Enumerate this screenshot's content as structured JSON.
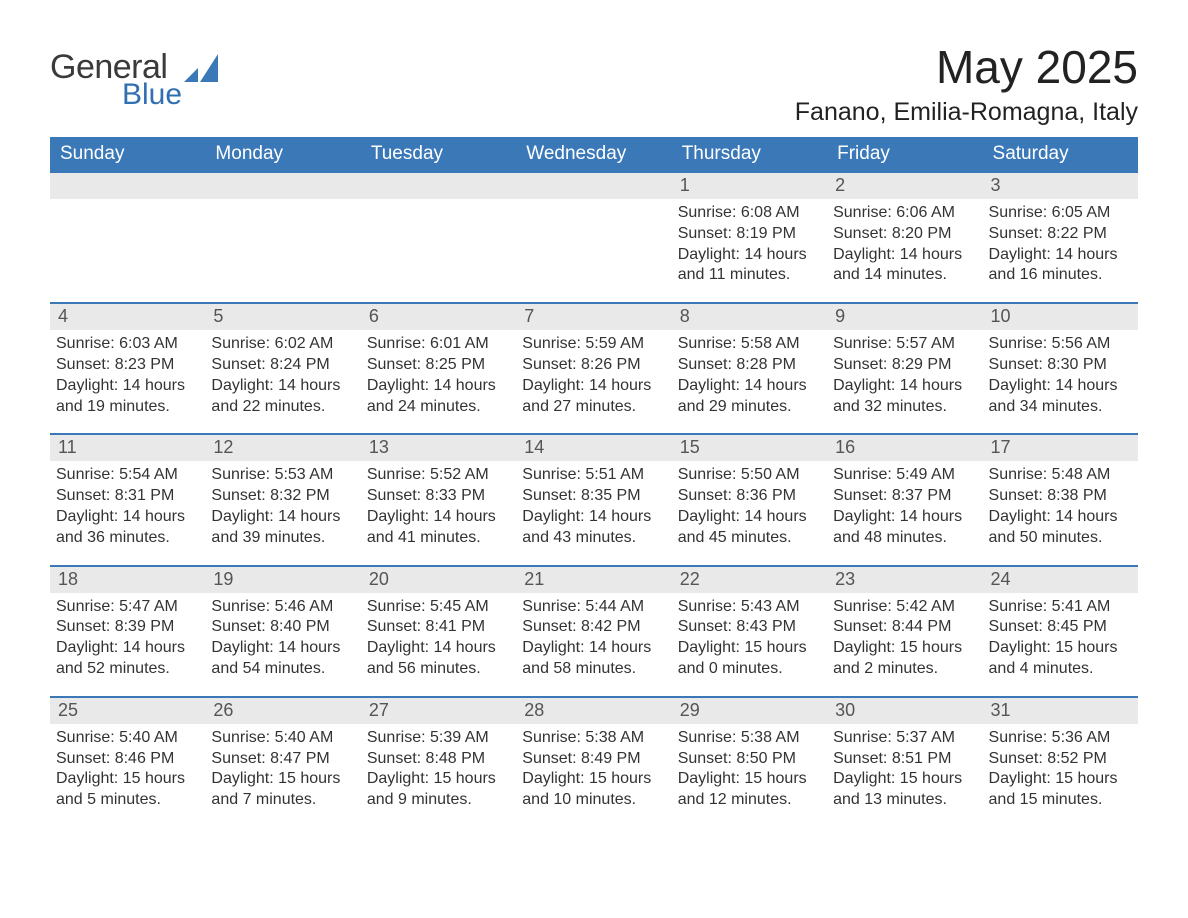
{
  "logo": {
    "word1": "General",
    "word2": "Blue",
    "icon_color": "#3b78b8",
    "word1_color": "#3a3a3a",
    "word2_color": "#2f6fb2"
  },
  "title": "May 2025",
  "location": "Fanano, Emilia-Romagna, Italy",
  "colors": {
    "header_bg": "#3b78b8",
    "header_text": "#ffffff",
    "daynum_bg": "#e9e9e9",
    "daynum_text": "#555555",
    "body_text": "#333333",
    "rule": "#3b78b8",
    "page_bg": "#ffffff"
  },
  "typography": {
    "title_fontsize": 46,
    "location_fontsize": 25,
    "header_fontsize": 19,
    "daynum_fontsize": 18,
    "body_fontsize": 16,
    "font_family": "Arial"
  },
  "weekdays": [
    "Sunday",
    "Monday",
    "Tuesday",
    "Wednesday",
    "Thursday",
    "Friday",
    "Saturday"
  ],
  "weeks": [
    [
      {
        "day": "",
        "sunrise": "",
        "sunset": "",
        "daylight": ""
      },
      {
        "day": "",
        "sunrise": "",
        "sunset": "",
        "daylight": ""
      },
      {
        "day": "",
        "sunrise": "",
        "sunset": "",
        "daylight": ""
      },
      {
        "day": "",
        "sunrise": "",
        "sunset": "",
        "daylight": ""
      },
      {
        "day": "1",
        "sunrise": "Sunrise: 6:08 AM",
        "sunset": "Sunset: 8:19 PM",
        "daylight": "Daylight: 14 hours and 11 minutes."
      },
      {
        "day": "2",
        "sunrise": "Sunrise: 6:06 AM",
        "sunset": "Sunset: 8:20 PM",
        "daylight": "Daylight: 14 hours and 14 minutes."
      },
      {
        "day": "3",
        "sunrise": "Sunrise: 6:05 AM",
        "sunset": "Sunset: 8:22 PM",
        "daylight": "Daylight: 14 hours and 16 minutes."
      }
    ],
    [
      {
        "day": "4",
        "sunrise": "Sunrise: 6:03 AM",
        "sunset": "Sunset: 8:23 PM",
        "daylight": "Daylight: 14 hours and 19 minutes."
      },
      {
        "day": "5",
        "sunrise": "Sunrise: 6:02 AM",
        "sunset": "Sunset: 8:24 PM",
        "daylight": "Daylight: 14 hours and 22 minutes."
      },
      {
        "day": "6",
        "sunrise": "Sunrise: 6:01 AM",
        "sunset": "Sunset: 8:25 PM",
        "daylight": "Daylight: 14 hours and 24 minutes."
      },
      {
        "day": "7",
        "sunrise": "Sunrise: 5:59 AM",
        "sunset": "Sunset: 8:26 PM",
        "daylight": "Daylight: 14 hours and 27 minutes."
      },
      {
        "day": "8",
        "sunrise": "Sunrise: 5:58 AM",
        "sunset": "Sunset: 8:28 PM",
        "daylight": "Daylight: 14 hours and 29 minutes."
      },
      {
        "day": "9",
        "sunrise": "Sunrise: 5:57 AM",
        "sunset": "Sunset: 8:29 PM",
        "daylight": "Daylight: 14 hours and 32 minutes."
      },
      {
        "day": "10",
        "sunrise": "Sunrise: 5:56 AM",
        "sunset": "Sunset: 8:30 PM",
        "daylight": "Daylight: 14 hours and 34 minutes."
      }
    ],
    [
      {
        "day": "11",
        "sunrise": "Sunrise: 5:54 AM",
        "sunset": "Sunset: 8:31 PM",
        "daylight": "Daylight: 14 hours and 36 minutes."
      },
      {
        "day": "12",
        "sunrise": "Sunrise: 5:53 AM",
        "sunset": "Sunset: 8:32 PM",
        "daylight": "Daylight: 14 hours and 39 minutes."
      },
      {
        "day": "13",
        "sunrise": "Sunrise: 5:52 AM",
        "sunset": "Sunset: 8:33 PM",
        "daylight": "Daylight: 14 hours and 41 minutes."
      },
      {
        "day": "14",
        "sunrise": "Sunrise: 5:51 AM",
        "sunset": "Sunset: 8:35 PM",
        "daylight": "Daylight: 14 hours and 43 minutes."
      },
      {
        "day": "15",
        "sunrise": "Sunrise: 5:50 AM",
        "sunset": "Sunset: 8:36 PM",
        "daylight": "Daylight: 14 hours and 45 minutes."
      },
      {
        "day": "16",
        "sunrise": "Sunrise: 5:49 AM",
        "sunset": "Sunset: 8:37 PM",
        "daylight": "Daylight: 14 hours and 48 minutes."
      },
      {
        "day": "17",
        "sunrise": "Sunrise: 5:48 AM",
        "sunset": "Sunset: 8:38 PM",
        "daylight": "Daylight: 14 hours and 50 minutes."
      }
    ],
    [
      {
        "day": "18",
        "sunrise": "Sunrise: 5:47 AM",
        "sunset": "Sunset: 8:39 PM",
        "daylight": "Daylight: 14 hours and 52 minutes."
      },
      {
        "day": "19",
        "sunrise": "Sunrise: 5:46 AM",
        "sunset": "Sunset: 8:40 PM",
        "daylight": "Daylight: 14 hours and 54 minutes."
      },
      {
        "day": "20",
        "sunrise": "Sunrise: 5:45 AM",
        "sunset": "Sunset: 8:41 PM",
        "daylight": "Daylight: 14 hours and 56 minutes."
      },
      {
        "day": "21",
        "sunrise": "Sunrise: 5:44 AM",
        "sunset": "Sunset: 8:42 PM",
        "daylight": "Daylight: 14 hours and 58 minutes."
      },
      {
        "day": "22",
        "sunrise": "Sunrise: 5:43 AM",
        "sunset": "Sunset: 8:43 PM",
        "daylight": "Daylight: 15 hours and 0 minutes."
      },
      {
        "day": "23",
        "sunrise": "Sunrise: 5:42 AM",
        "sunset": "Sunset: 8:44 PM",
        "daylight": "Daylight: 15 hours and 2 minutes."
      },
      {
        "day": "24",
        "sunrise": "Sunrise: 5:41 AM",
        "sunset": "Sunset: 8:45 PM",
        "daylight": "Daylight: 15 hours and 4 minutes."
      }
    ],
    [
      {
        "day": "25",
        "sunrise": "Sunrise: 5:40 AM",
        "sunset": "Sunset: 8:46 PM",
        "daylight": "Daylight: 15 hours and 5 minutes."
      },
      {
        "day": "26",
        "sunrise": "Sunrise: 5:40 AM",
        "sunset": "Sunset: 8:47 PM",
        "daylight": "Daylight: 15 hours and 7 minutes."
      },
      {
        "day": "27",
        "sunrise": "Sunrise: 5:39 AM",
        "sunset": "Sunset: 8:48 PM",
        "daylight": "Daylight: 15 hours and 9 minutes."
      },
      {
        "day": "28",
        "sunrise": "Sunrise: 5:38 AM",
        "sunset": "Sunset: 8:49 PM",
        "daylight": "Daylight: 15 hours and 10 minutes."
      },
      {
        "day": "29",
        "sunrise": "Sunrise: 5:38 AM",
        "sunset": "Sunset: 8:50 PM",
        "daylight": "Daylight: 15 hours and 12 minutes."
      },
      {
        "day": "30",
        "sunrise": "Sunrise: 5:37 AM",
        "sunset": "Sunset: 8:51 PM",
        "daylight": "Daylight: 15 hours and 13 minutes."
      },
      {
        "day": "31",
        "sunrise": "Sunrise: 5:36 AM",
        "sunset": "Sunset: 8:52 PM",
        "daylight": "Daylight: 15 hours and 15 minutes."
      }
    ]
  ]
}
